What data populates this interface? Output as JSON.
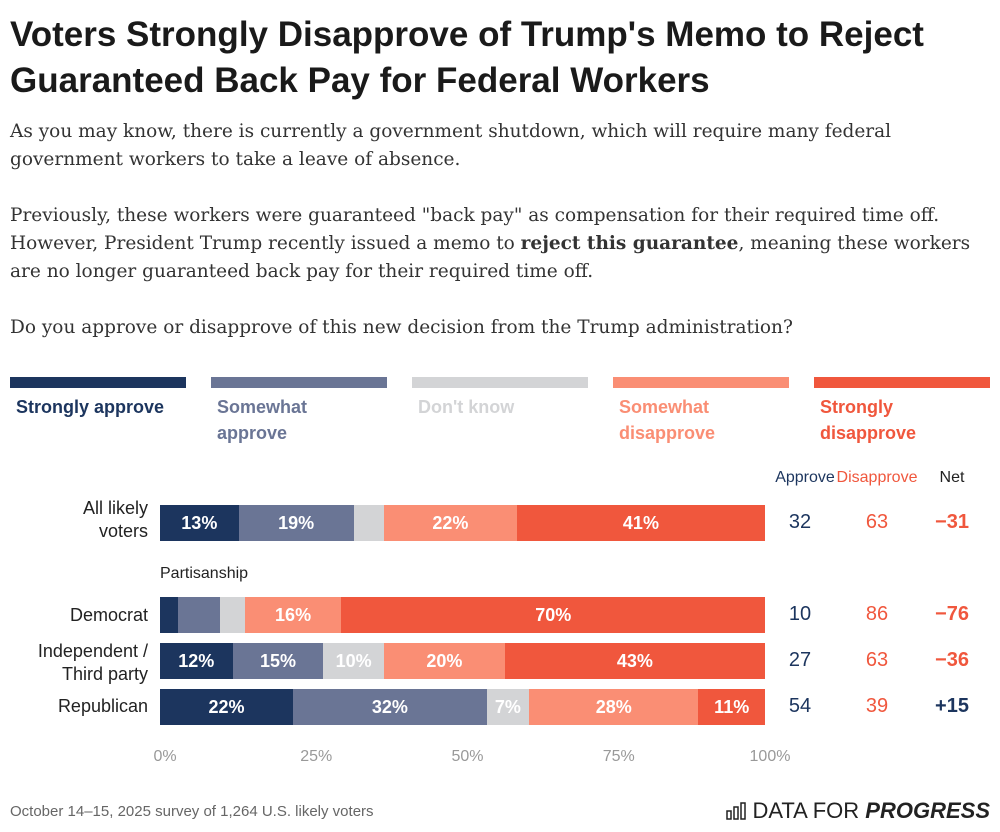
{
  "title": "Voters Strongly Disapprove of Trump's Memo to Reject Guaranteed Back Pay for Federal Workers",
  "intro": {
    "p1": "As you may know, there is currently a government shutdown, which will require many federal government workers to take a leave of absence.",
    "p2_before": "Previously, these workers were guaranteed \"back pay\" as compensation for their required time off. However, President Trump recently issued a memo to ",
    "p2_bold": "reject this guarantee",
    "p2_after": ", meaning these workers are no longer guaranteed back pay for their required time off.",
    "p3": "Do you approve or disapprove of this new decision from the Trump administration?"
  },
  "chart_data": {
    "type": "bar",
    "orientation": "horizontal-stacked",
    "categories": [
      "All likely voters",
      "Democrat",
      "Independent / Third party",
      "Republican"
    ],
    "group_label": "Partisanship",
    "series": [
      {
        "name": "Strongly approve",
        "color": "#1c355e",
        "values": [
          13,
          3,
          12,
          22
        ]
      },
      {
        "name": "Somewhat approve",
        "color": "#6a7595",
        "values": [
          19,
          7,
          15,
          32
        ]
      },
      {
        "name": "Don't know",
        "color": "#d3d4d6",
        "values": [
          5,
          4,
          10,
          7
        ]
      },
      {
        "name": "Somewhat disapprove",
        "color": "#fa8e74",
        "values": [
          22,
          16,
          20,
          28
        ]
      },
      {
        "name": "Strongly disapprove",
        "color": "#f0573d",
        "values": [
          41,
          70,
          43,
          11
        ]
      }
    ],
    "labels": [
      [
        "13%",
        "19%",
        "",
        "22%",
        "41%"
      ],
      [
        "",
        "",
        "",
        "16%",
        "70%"
      ],
      [
        "12%",
        "15%",
        "10%",
        "20%",
        "43%"
      ],
      [
        "22%",
        "32%",
        "7%",
        "28%",
        "11%"
      ]
    ],
    "summary_headers": [
      "Approve",
      "Disapprove",
      "Net"
    ],
    "approve": [
      "32",
      "10",
      "27",
      "54"
    ],
    "disapprove": [
      "63",
      "86",
      "63",
      "39"
    ],
    "net": [
      "−31",
      "−76",
      "−36",
      "+15"
    ],
    "xticks": [
      "0%",
      "25%",
      "50%",
      "75%",
      "100%"
    ],
    "xlim": [
      0,
      100
    ],
    "legend": "top"
  },
  "colors": {
    "approve": "#1c355e",
    "disapprove": "#f0573d"
  },
  "footer": "October 14–15, 2025 survey of 1,264 U.S. likely voters",
  "logo": {
    "regular": "DATA FOR ",
    "bold": "PROGRESS"
  }
}
